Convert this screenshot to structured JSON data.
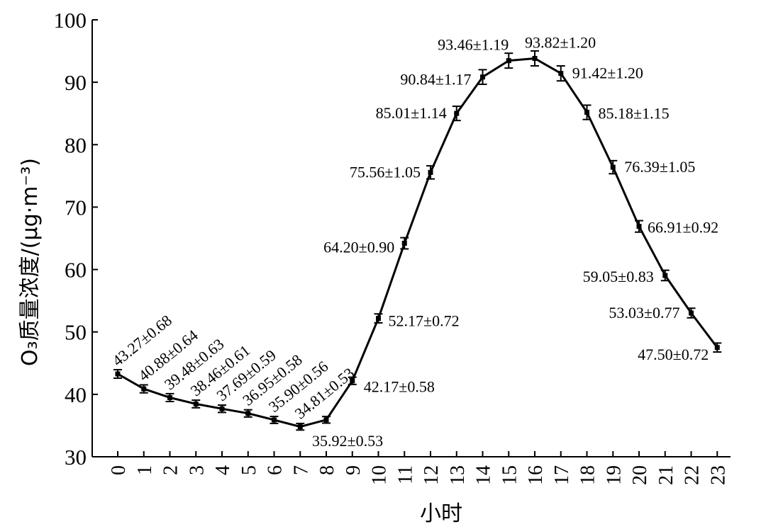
{
  "chart_data": {
    "type": "line",
    "xlabel": "小时",
    "ylabel": "O₃质量浓度/(μg·m⁻³)",
    "ylim": [
      30,
      100
    ],
    "yticks": [
      "30",
      "40",
      "50",
      "60",
      "70",
      "80",
      "90",
      "100"
    ],
    "grid": false,
    "x": [
      "0",
      "1",
      "2",
      "3",
      "4",
      "5",
      "6",
      "7",
      "8",
      "9",
      "10",
      "11",
      "12",
      "13",
      "14",
      "15",
      "16",
      "17",
      "18",
      "19",
      "20",
      "21",
      "22",
      "23"
    ],
    "values": [
      43.27,
      40.88,
      39.48,
      38.46,
      37.69,
      36.95,
      35.9,
      34.81,
      35.92,
      42.17,
      52.17,
      64.2,
      75.56,
      85.01,
      90.84,
      93.46,
      93.82,
      91.42,
      85.18,
      76.39,
      66.91,
      59.05,
      53.03,
      47.5
    ],
    "errors": [
      0.68,
      0.64,
      0.63,
      0.61,
      0.59,
      0.58,
      0.56,
      0.53,
      0.53,
      0.58,
      0.72,
      0.9,
      1.05,
      1.14,
      1.17,
      1.19,
      1.2,
      1.2,
      1.15,
      1.05,
      0.92,
      0.83,
      0.77,
      0.72
    ],
    "point_labels": [
      "43.27±0.68",
      "40.88±0.64",
      "39.48±0.63",
      "38.46±0.61",
      "37.69±0.59",
      "36.95±0.58",
      "35.90±0.56",
      "34.81±0.53",
      "35.92±0.53",
      "42.17±0.58",
      "52.17±0.72",
      "64.20±0.90",
      "75.56±1.05",
      "85.01±1.14",
      "90.84±1.17",
      "93.46±1.19",
      "93.82±1.20",
      "91.42±1.20",
      "85.18±1.15",
      "76.39±1.05",
      "66.91±0.92",
      "59.05±0.83",
      "53.03±0.77",
      "47.50±0.72"
    ]
  }
}
